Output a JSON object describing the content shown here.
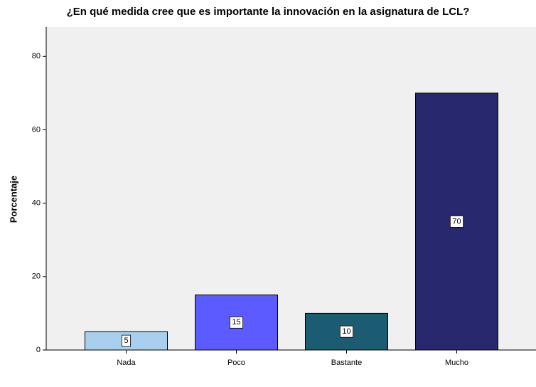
{
  "chart_data": {
    "type": "bar",
    "title": "¿En qué medida cree que es importante la innovación en la asignatura de LCL?",
    "y_label": "Porcentaje",
    "categories": [
      "Nada",
      "Poco",
      "Bastante",
      "Mucho"
    ],
    "values": [
      5,
      15,
      10,
      70
    ],
    "colors": [
      "#a9cfee",
      "#5b5bff",
      "#1b5c73",
      "#27286e"
    ],
    "ylim": [
      0,
      88
    ],
    "yticks": [
      0,
      20,
      40,
      60,
      80
    ],
    "grid": false,
    "data_labels": true
  }
}
